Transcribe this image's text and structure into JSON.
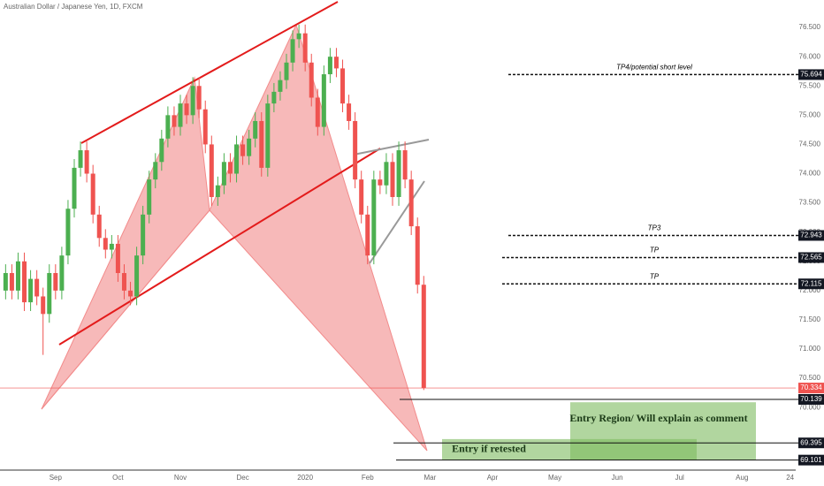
{
  "chart_data": {
    "type": "candlestick",
    "title": "Australian Dollar / Japanese Yen, 1D, FXCM",
    "up_color": "#4caf50",
    "down_color": "#ef5350",
    "x": [
      8.2,
      8.3,
      8.4,
      8.5,
      8.6,
      8.7,
      8.8,
      8.9,
      9.0,
      9.1,
      9.2,
      9.3,
      9.4,
      9.5,
      9.6,
      9.7,
      9.8,
      9.9,
      10.0,
      10.1,
      10.2,
      10.3,
      10.4,
      10.5,
      10.6,
      10.7,
      10.8,
      10.9,
      11.0,
      11.1,
      11.2,
      11.3,
      11.4,
      11.5,
      11.6,
      11.7,
      11.8,
      11.9,
      12.0,
      12.1,
      12.2,
      12.3,
      12.4,
      12.5,
      12.6,
      12.7,
      12.8,
      12.9,
      13.0,
      13.1,
      13.2,
      13.3,
      13.4,
      13.5,
      13.6,
      13.7,
      13.8,
      13.9,
      14.0,
      14.1,
      14.2,
      14.3,
      14.4,
      14.5,
      14.6,
      14.7,
      14.8,
      14.9
    ],
    "ohlc": [
      [
        72.0,
        72.45,
        71.85,
        72.3
      ],
      [
        72.3,
        72.45,
        71.85,
        72.0
      ],
      [
        72.0,
        72.65,
        71.85,
        72.5
      ],
      [
        72.5,
        72.65,
        71.65,
        71.8
      ],
      [
        71.8,
        72.35,
        71.65,
        72.2
      ],
      [
        72.2,
        72.35,
        71.75,
        71.9
      ],
      [
        71.9,
        72.05,
        70.9,
        71.6
      ],
      [
        71.6,
        72.45,
        71.45,
        72.3
      ],
      [
        72.3,
        72.45,
        71.85,
        72.0
      ],
      [
        72.0,
        72.75,
        71.85,
        72.6
      ],
      [
        72.6,
        73.55,
        72.45,
        73.4
      ],
      [
        73.4,
        74.25,
        73.25,
        74.1
      ],
      [
        74.1,
        74.55,
        73.95,
        74.4
      ],
      [
        74.4,
        74.55,
        73.85,
        74.0
      ],
      [
        74.0,
        74.15,
        73.15,
        73.3
      ],
      [
        73.3,
        73.45,
        72.75,
        72.9
      ],
      [
        72.9,
        73.05,
        72.55,
        72.7
      ],
      [
        72.7,
        72.95,
        72.55,
        72.8
      ],
      [
        72.8,
        72.95,
        72.15,
        72.3
      ],
      [
        72.3,
        72.45,
        71.85,
        72.0
      ],
      [
        72.0,
        72.15,
        71.75,
        71.9
      ],
      [
        71.9,
        72.75,
        71.75,
        72.6
      ],
      [
        72.6,
        73.45,
        72.45,
        73.3
      ],
      [
        73.3,
        74.05,
        73.15,
        73.9
      ],
      [
        73.9,
        74.35,
        73.75,
        74.2
      ],
      [
        74.2,
        74.75,
        74.05,
        74.6
      ],
      [
        74.6,
        75.15,
        74.45,
        75.0
      ],
      [
        75.0,
        75.15,
        74.65,
        74.8
      ],
      [
        74.8,
        75.35,
        74.65,
        75.2
      ],
      [
        75.2,
        75.35,
        74.85,
        75.0
      ],
      [
        75.0,
        75.65,
        74.85,
        75.5
      ],
      [
        75.5,
        75.65,
        74.95,
        75.1
      ],
      [
        75.1,
        75.25,
        74.35,
        74.5
      ],
      [
        74.5,
        74.65,
        73.45,
        73.6
      ],
      [
        73.6,
        73.95,
        73.45,
        73.8
      ],
      [
        73.8,
        74.35,
        73.65,
        74.2
      ],
      [
        74.2,
        74.35,
        73.85,
        74.0
      ],
      [
        74.0,
        74.65,
        73.85,
        74.5
      ],
      [
        74.5,
        74.65,
        74.15,
        74.3
      ],
      [
        74.3,
        74.75,
        74.15,
        74.6
      ],
      [
        74.6,
        75.05,
        74.45,
        74.9
      ],
      [
        74.9,
        75.05,
        73.95,
        74.1
      ],
      [
        74.1,
        75.35,
        73.95,
        75.2
      ],
      [
        75.2,
        75.55,
        75.05,
        75.4
      ],
      [
        75.4,
        75.75,
        75.25,
        75.6
      ],
      [
        75.6,
        76.05,
        75.45,
        75.9
      ],
      [
        75.9,
        76.45,
        75.75,
        76.3
      ],
      [
        76.3,
        76.55,
        76.15,
        76.4
      ],
      [
        76.4,
        76.55,
        75.75,
        75.9
      ],
      [
        75.9,
        76.05,
        75.15,
        75.3
      ],
      [
        75.3,
        75.45,
        74.65,
        74.8
      ],
      [
        74.8,
        75.85,
        74.65,
        75.7
      ],
      [
        75.7,
        76.15,
        75.55,
        76.0
      ],
      [
        76.0,
        76.15,
        75.65,
        75.8
      ],
      [
        75.8,
        75.95,
        75.05,
        75.2
      ],
      [
        75.2,
        75.35,
        74.75,
        74.9
      ],
      [
        74.9,
        75.05,
        73.75,
        73.9
      ],
      [
        73.9,
        74.05,
        73.15,
        73.3
      ],
      [
        73.3,
        73.45,
        72.45,
        72.6
      ],
      [
        72.6,
        74.05,
        72.45,
        73.9
      ],
      [
        73.9,
        74.05,
        73.65,
        73.8
      ],
      [
        73.8,
        74.35,
        73.65,
        74.2
      ],
      [
        74.2,
        74.35,
        73.45,
        73.6
      ],
      [
        73.6,
        74.55,
        73.45,
        74.4
      ],
      [
        74.4,
        74.55,
        73.75,
        73.9
      ],
      [
        73.9,
        74.05,
        72.95,
        73.1
      ],
      [
        73.1,
        73.25,
        71.95,
        72.1
      ],
      [
        72.1,
        72.25,
        70.3,
        70.334
      ]
    ],
    "xlim": [
      8.11,
      20.86
    ],
    "xticks": [
      {
        "value": 9,
        "label": "Sep"
      },
      {
        "value": 10,
        "label": "Oct"
      },
      {
        "value": 11,
        "label": "Nov"
      },
      {
        "value": 12,
        "label": "Dec"
      },
      {
        "value": 13,
        "label": "2020"
      },
      {
        "value": 14,
        "label": "Feb"
      },
      {
        "value": 15,
        "label": "Mar"
      },
      {
        "value": 16,
        "label": "Apr"
      },
      {
        "value": 17,
        "label": "May"
      },
      {
        "value": 18,
        "label": "Jun"
      },
      {
        "value": 19,
        "label": "Jul"
      },
      {
        "value": 20,
        "label": "Aug"
      },
      {
        "value": 20.77,
        "label": "24"
      }
    ],
    "ylim": [
      68.96,
      76.97
    ],
    "yticks": [
      {
        "value": 70,
        "label": "70.000"
      },
      {
        "value": 70.5,
        "label": "70.500"
      },
      {
        "value": 71,
        "label": "71.000"
      },
      {
        "value": 71.5,
        "label": "71.500"
      },
      {
        "value": 72,
        "label": "72.000"
      },
      {
        "value": 72.5,
        "label": "72.500"
      },
      {
        "value": 73,
        "label": "73.000"
      },
      {
        "value": 73.5,
        "label": "73.500"
      },
      {
        "value": 74,
        "label": "74.000"
      },
      {
        "value": 74.5,
        "label": "74.500"
      },
      {
        "value": 75,
        "label": "75.000"
      },
      {
        "value": 75.5,
        "label": "75.500"
      },
      {
        "value": 76,
        "label": "76.000"
      },
      {
        "value": 76.5,
        "label": "76.500"
      }
    ],
    "levels": [
      {
        "value": 75.694,
        "text": "TP4/potential short level",
        "style": "dashed"
      },
      {
        "value": 72.943,
        "text": "TP3",
        "style": "dashed"
      },
      {
        "value": 72.565,
        "text": "TP",
        "style": "dashed"
      },
      {
        "value": 72.115,
        "text": "TP",
        "style": "dashed"
      },
      {
        "value": 70.139,
        "style": "solid"
      },
      {
        "value": 69.395,
        "style": "solid"
      },
      {
        "value": 69.101,
        "style": "solid"
      }
    ],
    "zones": [
      {
        "text": "Entry Region/ Will explain as comment",
        "range": [
          69.1,
          70.09
        ]
      },
      {
        "text": "Entry if retested",
        "range": [
          69.1,
          69.46
        ]
      }
    ]
  }
}
